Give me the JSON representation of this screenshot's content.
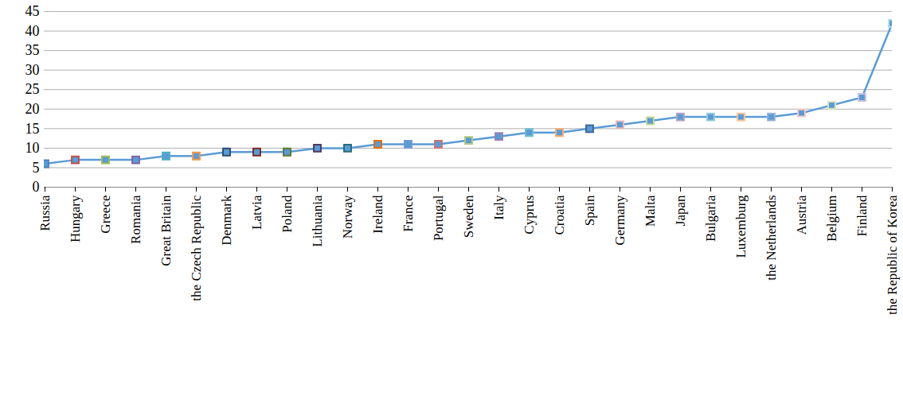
{
  "chart_data": {
    "type": "line",
    "categories": [
      "Russia",
      "Hungary",
      "Greece",
      "Romania",
      "Great Britain",
      "the Czech Republic",
      "Denmark",
      "Latvia",
      "Poland",
      "Lithuania",
      "Norway",
      "Ireland",
      "France",
      "Portugal",
      "Sweden",
      "Italy",
      "Cyprus",
      "Croatia",
      "Spain",
      "Germany",
      "Malta",
      "Japan",
      "Bulgaria",
      "Luxemburg",
      "the Netherlands",
      "Austria",
      "Belgium",
      "Finland",
      "the Republic of Korea"
    ],
    "values": [
      6,
      7,
      7,
      7,
      8,
      8,
      9,
      9,
      9,
      10,
      10,
      11,
      11,
      11,
      12,
      13,
      14,
      14,
      15,
      16,
      17,
      18,
      18,
      18,
      18,
      19,
      21,
      23,
      42
    ],
    "color": "#5b9bd5",
    "colors": [
      "#4f81bd",
      "#c0504d",
      "#9bbb59",
      "#8064a2",
      "#4bacc6",
      "#f79646",
      "#2c4d75",
      "#772c2a",
      "#5f7530",
      "#4d3b62",
      "#276a7c",
      "#e46c0a",
      "#729aca",
      "#cd7371",
      "#afc97a",
      "#9983b5",
      "#6fbdd1",
      "#f9ab6b",
      "#3a679c",
      "#e6b9b8",
      "#c3d69b",
      "#b3a2c7",
      "#93cddd",
      "#fac090",
      "#95b3d7",
      "#f2c7c6",
      "#d7e4bd",
      "#ccc1da",
      "#b7dee8"
    ],
    "marker": "square",
    "ylim": [
      0,
      45
    ],
    "yticks": [
      0,
      5,
      10,
      15,
      20,
      25,
      30,
      35,
      40,
      45
    ],
    "grid": true
  }
}
